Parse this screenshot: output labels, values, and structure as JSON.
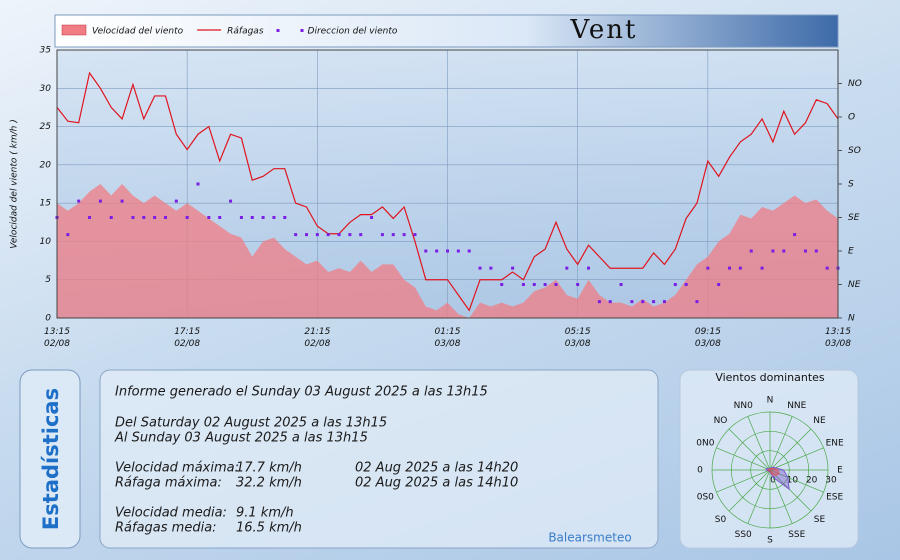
{
  "header": {
    "title": "Vent"
  },
  "sidebar_tab": "Estadísticas",
  "stats": {
    "report": "Informe generado el Sunday 03 August 2025 a las 13h15",
    "from": "Del Saturday 02 August 2025 a las 13h15",
    "to": "Al Sunday 03 August 2025 a las 13h15",
    "rows": [
      [
        "Velocidad máxima:",
        "17.7 km/h",
        "02 Aug 2025 a las 14h20"
      ],
      [
        "Ráfaga máxima:",
        "32.2 km/h",
        "02 Aug 2025 a las 14h10"
      ],
      [
        "Velocidad media:",
        "9.1 km/h"
      ],
      [
        "Ráfagas media:",
        "16.5 km/h"
      ]
    ]
  },
  "footer": "Balearsmeteo",
  "chart_data": [
    {
      "type": "line",
      "ylabel": "Velocidad del viento ( km/h )",
      "x": [
        "02/08 13:15",
        "02/08 13:35",
        "02/08 13:55",
        "02/08 14:15",
        "02/08 14:35",
        "02/08 14:55",
        "02/08 15:15",
        "02/08 15:35",
        "02/08 15:55",
        "02/08 16:15",
        "02/08 16:35",
        "02/08 16:55",
        "02/08 17:15",
        "02/08 17:35",
        "02/08 17:55",
        "02/08 18:15",
        "02/08 18:35",
        "02/08 18:55",
        "02/08 19:15",
        "02/08 19:35",
        "02/08 19:55",
        "02/08 20:15",
        "02/08 20:35",
        "02/08 20:55",
        "02/08 21:15",
        "02/08 21:35",
        "02/08 21:55",
        "02/08 22:15",
        "02/08 22:35",
        "02/08 22:55",
        "02/08 23:15",
        "02/08 23:35",
        "02/08 23:55",
        "03/08 00:15",
        "03/08 00:35",
        "03/08 00:55",
        "03/08 01:15",
        "03/08 01:35",
        "03/08 01:55",
        "03/08 02:15",
        "03/08 02:35",
        "03/08 02:55",
        "03/08 03:15",
        "03/08 03:35",
        "03/08 03:55",
        "03/08 04:15",
        "03/08 04:35",
        "03/08 04:55",
        "03/08 05:15",
        "03/08 05:35",
        "03/08 05:55",
        "03/08 06:15",
        "03/08 06:35",
        "03/08 06:55",
        "03/08 07:15",
        "03/08 07:35",
        "03/08 07:55",
        "03/08 08:15",
        "03/08 08:35",
        "03/08 08:55",
        "03/08 09:15",
        "03/08 09:35",
        "03/08 09:55",
        "03/08 10:15",
        "03/08 10:35",
        "03/08 10:55",
        "03/08 11:15",
        "03/08 11:35",
        "03/08 11:55",
        "03/08 12:15",
        "03/08 12:35",
        "03/08 12:55",
        "03/08 13:15"
      ],
      "series": [
        {
          "name": "Velocidad del viento",
          "style": "area",
          "color": "#f07c84",
          "values": [
            15,
            14,
            15,
            16.5,
            17.5,
            16,
            17.5,
            16,
            15,
            16,
            15,
            14,
            15,
            14,
            13,
            12,
            11,
            10.5,
            8,
            10,
            10.5,
            9,
            8,
            7,
            7.5,
            6,
            6.5,
            6,
            7.5,
            6,
            7,
            7,
            5,
            4,
            1.5,
            1,
            2,
            0.5,
            0,
            2,
            1.5,
            2,
            1.5,
            2,
            3.5,
            4,
            5,
            3,
            2.5,
            5,
            3,
            2,
            2,
            1.5,
            2.5,
            1.5,
            2,
            3,
            5,
            7,
            8,
            10,
            11,
            13.5,
            13,
            14.5,
            14,
            15,
            16,
            15,
            15.5,
            14,
            13
          ]
        },
        {
          "name": "Ráfagas",
          "style": "line",
          "color": "#e0141e",
          "values": [
            27.5,
            25.7,
            25.5,
            32,
            30,
            27.5,
            26,
            30.5,
            26,
            29,
            29,
            24,
            22,
            24,
            25,
            20.5,
            24,
            23.5,
            18,
            18.5,
            19.5,
            19.5,
            15,
            14.5,
            12,
            11,
            11,
            12.5,
            13.5,
            13.5,
            14.5,
            13,
            14.5,
            10,
            5,
            5,
            5,
            3,
            1,
            5,
            5,
            5,
            6,
            5,
            8,
            9,
            12.5,
            9,
            7,
            9.5,
            8,
            6.5,
            6.5,
            6.5,
            6.5,
            8.5,
            7,
            9,
            13,
            15,
            20.5,
            18.5,
            21,
            23,
            24,
            26,
            23,
            27,
            24,
            25.5,
            28.5,
            28,
            26
          ]
        },
        {
          "name": "Direccion del viento",
          "style": "points",
          "color": "#7a1ee6",
          "axis": "y2",
          "values": [
            135,
            112,
            157,
            135,
            157,
            135,
            157,
            135,
            135,
            135,
            135,
            157,
            135,
            180,
            135,
            135,
            157,
            135,
            135,
            135,
            135,
            135,
            112,
            112,
            112,
            112,
            112,
            112,
            112,
            135,
            112,
            112,
            112,
            112,
            90,
            90,
            90,
            90,
            90,
            67,
            67,
            45,
            67,
            45,
            45,
            45,
            45,
            67,
            45,
            67,
            22,
            22,
            45,
            22,
            22,
            22,
            22,
            45,
            45,
            22,
            67,
            45,
            67,
            67,
            90,
            67,
            90,
            90,
            112,
            90,
            90,
            67,
            67
          ]
        }
      ],
      "xlim": [
        "02/08 13:15",
        "03/08 13:15"
      ],
      "xticks": [
        {
          "value": "02/08 13:15",
          "label": "13:15\n02/08"
        },
        {
          "value": "02/08 17:15",
          "label": "17:15\n02/08"
        },
        {
          "value": "02/08 21:15",
          "label": "21:15\n02/08"
        },
        {
          "value": "03/08 01:15",
          "label": "01:15\n03/08"
        },
        {
          "value": "03/08 05:15",
          "label": "05:15\n03/08"
        },
        {
          "value": "03/08 09:15",
          "label": "09:15\n03/08"
        },
        {
          "value": "03/08 13:15",
          "label": "13:15\n03/08"
        }
      ],
      "ylim": [
        0,
        35
      ],
      "yticks": [
        0,
        5,
        10,
        15,
        20,
        25,
        30,
        35
      ],
      "y2lim": [
        0,
        360
      ],
      "y2ticks": [
        {
          "value": 0,
          "label": "N"
        },
        {
          "value": 45,
          "label": "NE"
        },
        {
          "value": 90,
          "label": "E"
        },
        {
          "value": 135,
          "label": "SE"
        },
        {
          "value": 180,
          "label": "S"
        },
        {
          "value": 225,
          "label": "SO"
        },
        {
          "value": 270,
          "label": "O"
        },
        {
          "value": 315,
          "label": "NO"
        }
      ],
      "grid": true
    },
    {
      "type": "rose",
      "title": "Vientos dominantes",
      "categories": [
        "N",
        "NNE",
        "NE",
        "ENE",
        "E",
        "ESE",
        "SE",
        "SSE",
        "S",
        "SS0",
        "S0",
        "0S0",
        "0",
        "0N0",
        "NO",
        "NN0"
      ],
      "series": [
        {
          "color": "#7b5ccc",
          "values": [
            1,
            1,
            2,
            3,
            7,
            10,
            14,
            4,
            1,
            1,
            1,
            1,
            2,
            2,
            1,
            1
          ]
        },
        {
          "color": "#e0505a",
          "values": [
            0.5,
            0.5,
            1,
            2,
            4,
            5,
            4,
            2,
            0.5,
            0.5,
            0.5,
            0.5,
            1,
            1,
            0.5,
            0.5
          ]
        }
      ],
      "rlim": [
        0,
        30
      ],
      "rticks": [
        0,
        10,
        20,
        30
      ]
    }
  ]
}
